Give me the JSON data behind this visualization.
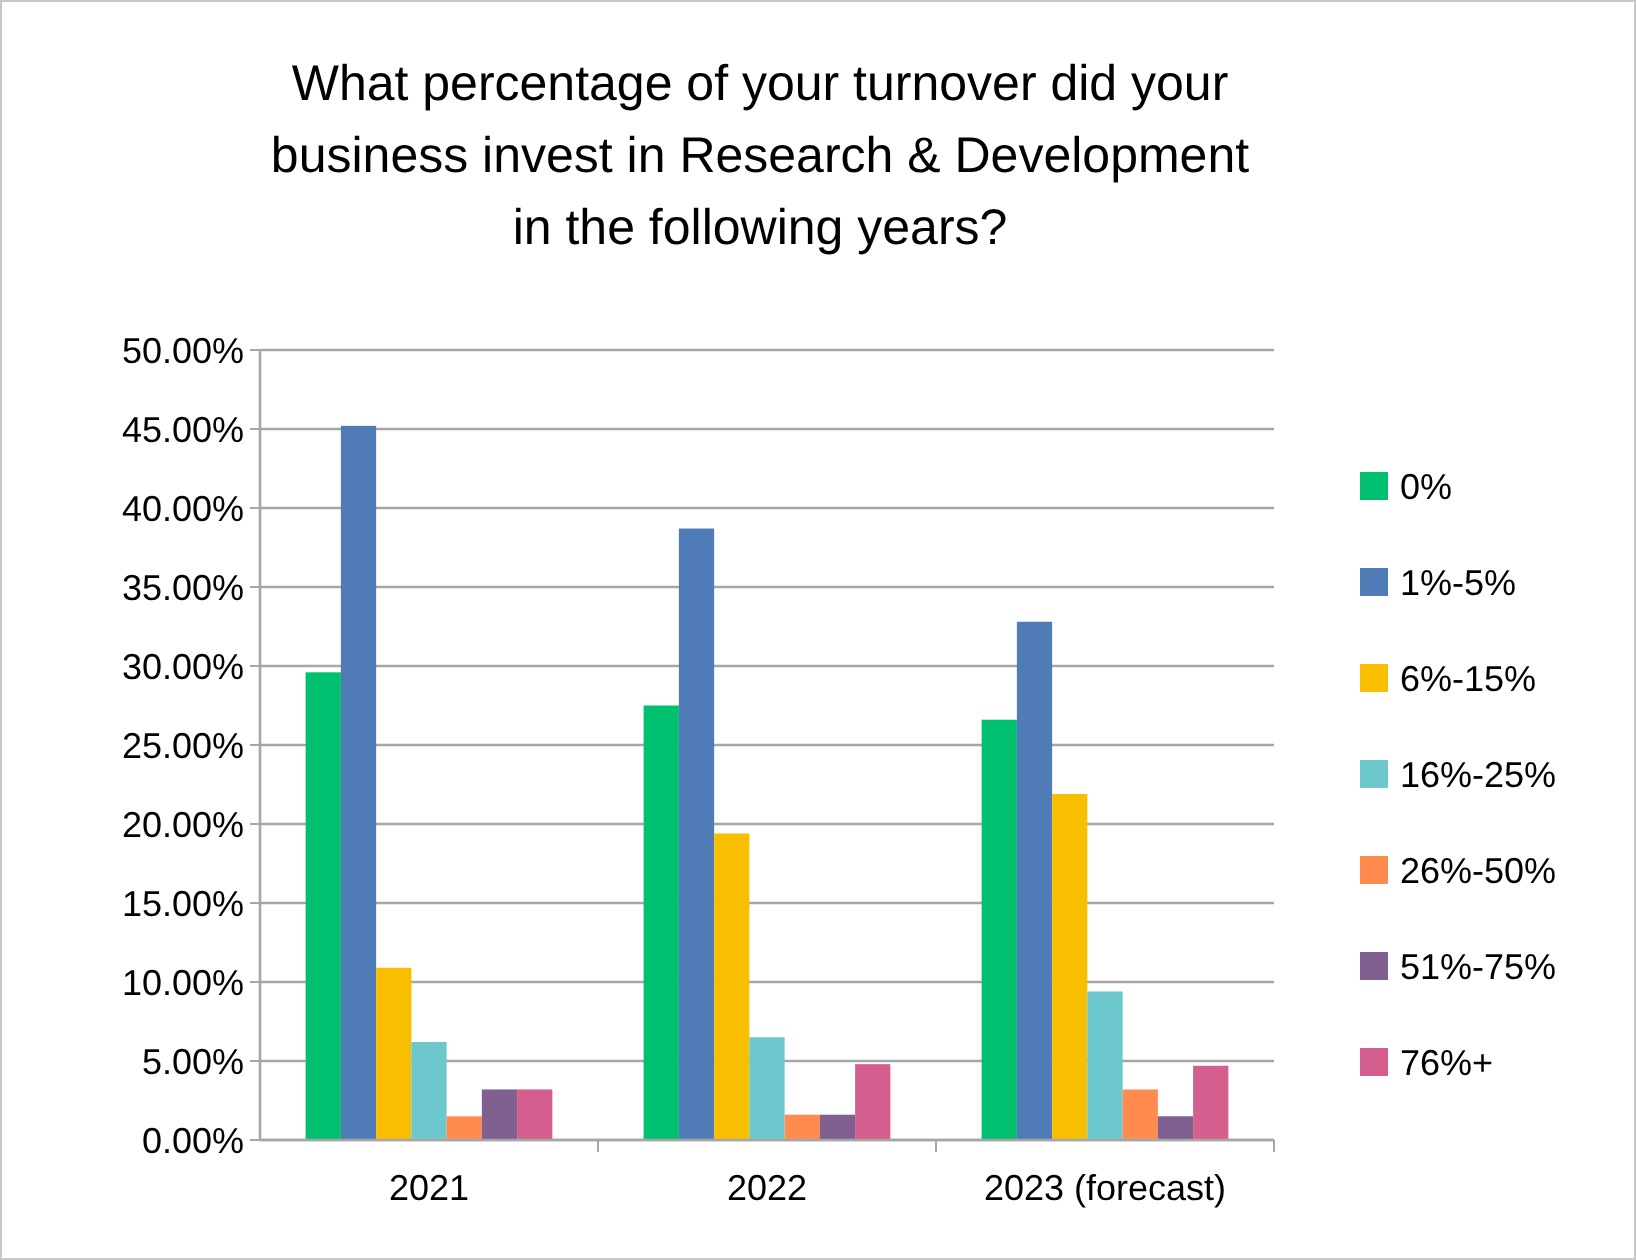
{
  "chart_data": {
    "type": "bar",
    "title": "What percentage of your turnover did your business invest in Research & Development in the following years?",
    "categories": [
      "2021",
      "2022",
      "2023 (forecast)"
    ],
    "series": [
      {
        "name": "0%",
        "color": "#00bf6f",
        "values": [
          29.6,
          27.5,
          26.6
        ]
      },
      {
        "name": "1%-5%",
        "color": "#4f7cb6",
        "values": [
          45.2,
          38.7,
          32.8
        ]
      },
      {
        "name": "6%-15%",
        "color": "#f8bf00",
        "values": [
          10.9,
          19.4,
          21.9
        ]
      },
      {
        "name": "16%-25%",
        "color": "#6cc8cc",
        "values": [
          6.2,
          6.5,
          9.4
        ]
      },
      {
        "name": "26%-50%",
        "color": "#ff8b4f",
        "values": [
          1.5,
          1.6,
          3.2
        ]
      },
      {
        "name": "51%-75%",
        "color": "#7f6090",
        "values": [
          3.2,
          1.6,
          1.5
        ]
      },
      {
        "name": "76%+",
        "color": "#d45f8e",
        "values": [
          3.2,
          4.8,
          4.7
        ]
      }
    ],
    "ylim": [
      0,
      50
    ],
    "yticks": [
      {
        "value": 0,
        "label": "0.00%"
      },
      {
        "value": 5,
        "label": "5.00%"
      },
      {
        "value": 10,
        "label": "10.00%"
      },
      {
        "value": 15,
        "label": "15.00%"
      },
      {
        "value": 20,
        "label": "20.00%"
      },
      {
        "value": 25,
        "label": "25.00%"
      },
      {
        "value": 30,
        "label": "30.00%"
      },
      {
        "value": 35,
        "label": "35.00%"
      },
      {
        "value": 40,
        "label": "40.00%"
      },
      {
        "value": 45,
        "label": "45.00%"
      },
      {
        "value": 50,
        "label": "50.00%"
      }
    ],
    "grid": "y",
    "legend": "right"
  }
}
